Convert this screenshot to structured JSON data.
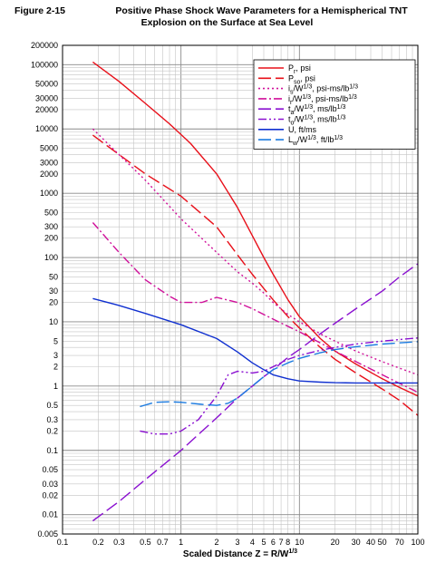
{
  "figure": {
    "number": "Figure 2-15",
    "title_line1": "Positive Phase Shock Wave Parameters for a Hemispherical TNT",
    "title_line2": "Explosion on the Surface at Sea Level"
  },
  "chart_data": {
    "type": "line",
    "title": "Positive Phase Shock Wave Parameters for a Hemispherical TNT Explosion on the Surface at Sea Level",
    "xlabel": "Scaled Distance Z = R/W^1/3",
    "ylabel": "",
    "x_scale": "log",
    "y_scale": "log",
    "xlim": [
      0.1,
      100
    ],
    "ylim": [
      0.005,
      200000
    ],
    "grid": true,
    "legend_position": "top-right",
    "x_ticks": [
      {
        "v": 0.1,
        "label": "0.1"
      },
      {
        "v": 0.2,
        "label": "0.2"
      },
      {
        "v": 0.3,
        "label": "0.3"
      },
      {
        "v": 0.5,
        "label": "0.5"
      },
      {
        "v": 0.7,
        "label": "0.7"
      },
      {
        "v": 1,
        "label": "1"
      },
      {
        "v": 2,
        "label": "2"
      },
      {
        "v": 3,
        "label": "3"
      },
      {
        "v": 4,
        "label": "4"
      },
      {
        "v": 5,
        "label": "5"
      },
      {
        "v": 6,
        "label": "6"
      },
      {
        "v": 7,
        "label": "7"
      },
      {
        "v": 8,
        "label": "8"
      },
      {
        "v": 10,
        "label": "10"
      },
      {
        "v": 20,
        "label": "20"
      },
      {
        "v": 30,
        "label": "30"
      },
      {
        "v": 40,
        "label": "40"
      },
      {
        "v": 50,
        "label": "50"
      },
      {
        "v": 70,
        "label": "70"
      },
      {
        "v": 100,
        "label": "100"
      }
    ],
    "y_ticks": [
      {
        "v": 200000,
        "label": "200000"
      },
      {
        "v": 100000,
        "label": "100000"
      },
      {
        "v": 50000,
        "label": "50000"
      },
      {
        "v": 30000,
        "label": "30000"
      },
      {
        "v": 20000,
        "label": "20000"
      },
      {
        "v": 10000,
        "label": "10000"
      },
      {
        "v": 5000,
        "label": "5000"
      },
      {
        "v": 3000,
        "label": "3000"
      },
      {
        "v": 2000,
        "label": "2000"
      },
      {
        "v": 1000,
        "label": "1000"
      },
      {
        "v": 500,
        "label": "500"
      },
      {
        "v": 300,
        "label": "300"
      },
      {
        "v": 200,
        "label": "200"
      },
      {
        "v": 100,
        "label": "100"
      },
      {
        "v": 50,
        "label": "50"
      },
      {
        "v": 30,
        "label": "30"
      },
      {
        "v": 20,
        "label": "20"
      },
      {
        "v": 10,
        "label": "10"
      },
      {
        "v": 5,
        "label": "5"
      },
      {
        "v": 3,
        "label": "3"
      },
      {
        "v": 2,
        "label": "2"
      },
      {
        "v": 1,
        "label": "1"
      },
      {
        "v": 0.5,
        "label": "0.5"
      },
      {
        "v": 0.3,
        "label": "0.3"
      },
      {
        "v": 0.2,
        "label": "0.2"
      },
      {
        "v": 0.1,
        "label": "0.1"
      },
      {
        "v": 0.05,
        "label": "0.05"
      },
      {
        "v": 0.03,
        "label": "0.03"
      },
      {
        "v": 0.02,
        "label": "0.02"
      },
      {
        "v": 0.01,
        "label": "0.01"
      },
      {
        "v": 0.005,
        "label": "0.005"
      }
    ],
    "series": [
      {
        "name": "Pr, psi",
        "label_main": "P",
        "label_sub": "r",
        "label_rest": ", psi",
        "color": "#e8101a",
        "dash": "",
        "x": [
          0.18,
          0.3,
          0.5,
          0.8,
          1.2,
          2,
          3,
          4,
          5,
          6,
          8,
          10,
          15,
          20,
          30,
          50,
          70,
          100
        ],
        "y": [
          110000,
          55000,
          25000,
          12000,
          6000,
          2000,
          600,
          220,
          100,
          55,
          22,
          12,
          5.5,
          3.5,
          2.2,
          1.3,
          0.95,
          0.7
        ]
      },
      {
        "name": "Pso, psi",
        "label_main": "P",
        "label_sub": "so",
        "label_rest": ", psi",
        "color": "#e8101a",
        "dash": "14,5",
        "x": [
          0.18,
          0.3,
          0.5,
          1,
          2,
          3,
          4,
          5,
          6,
          8,
          10,
          15,
          20,
          30,
          50,
          70,
          100
        ],
        "y": [
          8000,
          4000,
          2000,
          900,
          300,
          110,
          55,
          33,
          22,
          12,
          8,
          4,
          2.6,
          1.6,
          0.9,
          0.6,
          0.35
        ]
      },
      {
        "name": "is/W1/3, psi-ms/lb1/3",
        "label_main": "i",
        "label_sub": "s",
        "label_rest": "/W",
        "label_sup": "1/3",
        "label_tail": ", psi-ms/lb",
        "label_sup2": "1/3",
        "color": "#d0109a",
        "dash": "2,3",
        "x": [
          0.18,
          0.3,
          0.5,
          1,
          2,
          3,
          4,
          5,
          6,
          8,
          10,
          15,
          20,
          30,
          50,
          70,
          100
        ],
        "y": [
          10000,
          4000,
          1600,
          400,
          120,
          60,
          40,
          28,
          20,
          13,
          10,
          6.5,
          5,
          3.5,
          2.4,
          1.9,
          1.5
        ]
      },
      {
        "name": "ir/W1/3, psi-ms/lb1/3",
        "label_main": "i",
        "label_sub": "r",
        "label_rest": "/W",
        "label_sup": "1/3",
        "label_tail": ", psi-ms/lb",
        "label_sup2": "1/3",
        "color": "#d0109a",
        "dash": "9,3,2,3",
        "x": [
          0.18,
          0.3,
          0.5,
          0.8,
          1,
          1.5,
          2,
          3,
          4,
          5,
          6,
          8,
          10,
          15,
          20,
          30,
          50,
          70,
          100
        ],
        "y": [
          350,
          120,
          45,
          25,
          20,
          20,
          24,
          20,
          16,
          13,
          11,
          8.5,
          7,
          4.7,
          3.5,
          2.4,
          1.5,
          1.1,
          0.8
        ]
      },
      {
        "name": "ta/W1/3, ms/lb1/3",
        "label_main": "t",
        "label_sub": "a",
        "label_rest": "/W",
        "label_sup": "1/3",
        "label_tail": ", ms/lb",
        "label_sup2": "1/3",
        "color": "#8a10d0",
        "dash": "14,5",
        "x": [
          0.18,
          0.3,
          0.5,
          1,
          2,
          3,
          4,
          5,
          6,
          8,
          10,
          15,
          20,
          30,
          50,
          70,
          100
        ],
        "y": [
          0.008,
          0.016,
          0.035,
          0.1,
          0.32,
          0.65,
          1.0,
          1.4,
          1.8,
          2.8,
          3.7,
          6.5,
          9.5,
          16,
          30,
          50,
          80
        ]
      },
      {
        "name": "to/W1/3, ms/lb1/3",
        "label_main": "t",
        "label_sub": "o",
        "label_rest": "/W",
        "label_sup": "1/3",
        "label_tail": ", ms/lb",
        "label_sup2": "1/3",
        "color": "#8a10d0",
        "dash": "9,3,2,3,2,3",
        "x": [
          0.45,
          0.6,
          0.8,
          1,
          1.4,
          2,
          2.5,
          3,
          4,
          5,
          6,
          8,
          10,
          15,
          20,
          30,
          50,
          70,
          100
        ],
        "y": [
          0.2,
          0.18,
          0.18,
          0.2,
          0.3,
          0.7,
          1.5,
          1.7,
          1.6,
          1.7,
          2.0,
          2.6,
          3.0,
          3.6,
          4.0,
          4.5,
          5.0,
          5.3,
          5.6
        ]
      },
      {
        "name": "U, ft/ms",
        "label_main": "U, ft/ms",
        "color": "#1030d0",
        "dash": "",
        "x": [
          0.18,
          0.3,
          0.5,
          1,
          2,
          3,
          4,
          5,
          6,
          8,
          10,
          15,
          20,
          30,
          50,
          70,
          100
        ],
        "y": [
          23,
          18,
          13.5,
          9,
          5.5,
          3.4,
          2.3,
          1.8,
          1.5,
          1.3,
          1.2,
          1.15,
          1.13,
          1.12,
          1.12,
          1.12,
          1.12
        ]
      },
      {
        "name": "Lw/W1/3, ft/lb1/3",
        "label_main": "L",
        "label_sub": "w",
        "label_rest": "/W",
        "label_sup": "1/3",
        "label_tail": ", ft/lb",
        "label_sup2": "1/3",
        "color": "#1a7ae0",
        "dash": "14,5",
        "x": [
          0.45,
          0.6,
          0.8,
          1,
          1.5,
          2,
          2.5,
          3,
          4,
          5,
          6,
          8,
          10,
          15,
          20,
          30,
          50,
          70,
          100
        ],
        "y": [
          0.48,
          0.56,
          0.57,
          0.56,
          0.52,
          0.5,
          0.54,
          0.65,
          1.0,
          1.4,
          1.8,
          2.3,
          2.7,
          3.3,
          3.7,
          4.1,
          4.5,
          4.7,
          4.9
        ]
      }
    ]
  },
  "axis": {
    "xlabel_main": "Scaled Distance Z = R/W",
    "xlabel_sup": "1/3"
  }
}
